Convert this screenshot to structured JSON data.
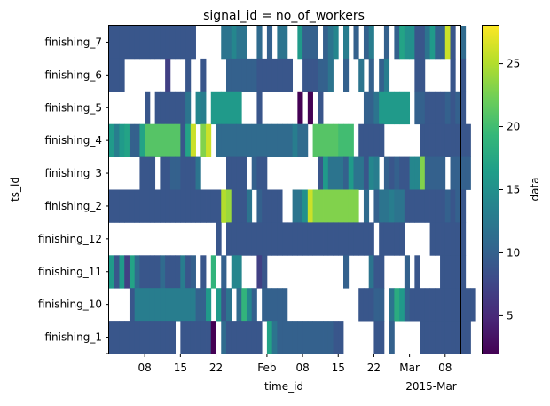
{
  "chart_data": {
    "type": "heatmap",
    "title": "signal_id = no_of_workers",
    "xlabel": "time_id",
    "ylabel": "ts_id",
    "x_tick_labels": [
      "08",
      "15",
      "22",
      "Feb",
      "08",
      "15",
      "22",
      "Mar",
      "08"
    ],
    "x_tick_days": [
      7,
      14,
      21,
      31,
      38,
      45,
      52,
      59,
      66
    ],
    "x_offset_label": "2015-Mar",
    "x_range_days": [
      0,
      69
    ],
    "rows": [
      "finishing_7",
      "finishing_6",
      "finishing_5",
      "finishing_4",
      "finishing_3",
      "finishing_2",
      "finishing_12",
      "finishing_11",
      "finishing_10",
      "finishing_1"
    ],
    "colorbar": {
      "label": "data",
      "min": 2,
      "max": 28,
      "ticks": [
        5,
        10,
        15,
        20,
        25
      ],
      "colormap": [
        "#440154",
        "#482878",
        "#3e4989",
        "#31688e",
        "#26828e",
        "#1f9e89",
        "#35b779",
        "#6ece58",
        "#b5de2b",
        "#fde725"
      ]
    },
    "missing_color": "#ffffff",
    "cells": [
      "99999999999999999_____CCECC__B_A_CC__GAAA_ACE_D_A_AD__A_AHFF99CGAAQ9_B",
      "999________7___9__9____AAAAAA9999999__999AAC__A__C_A_AD_____99_____9_9",
      "_______9_999999C_ED_GGGGGG___9_______1_1_9________AACGGGGGG_AA9999A9A9",
      "GDGHAAHLLLLLLL9HQ_NQ_BBBBBBBBBBBBBBBDBB_LLLLLKKK_99999_______9999999999",
      "______999_99AA999C_____9999_A99__________9GCCCAGCC9ED_A9A99EENAAAA_AAAA",
      "9999999999999999999999PO999C_A9999__CCFQNNNNNNNNN_B_ACCDCC99999999A9A9",
      "_____________________9_99999999999999999999999999999_99999_____9999999",
      "G9G7HB9999B999D9A_9_J_A_EE___79_______________A____C99____A_9____99999",
      "____9DDDDDDDDDDDDAAG_G9C_BJEA_AAAAA______________999AA_CIGA9999999999999",
      "9999999999999_9999990_B9999999_HCAAAAAAAAAAA99______99_A_____9999999999"
    ]
  }
}
